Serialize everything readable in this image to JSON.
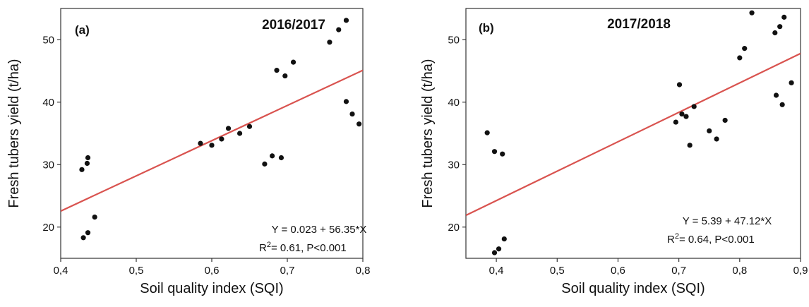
{
  "chart_data": [
    {
      "type": "scatter",
      "panel_label": "(a)",
      "title": "2016/2017",
      "xlabel": "Soil quality index (SQI)",
      "ylabel": "Fresh tubers yield (t/ha)",
      "xlim": [
        0.4,
        0.8
      ],
      "ylim": [
        15,
        55
      ],
      "xticks": [
        0.4,
        0.5,
        0.6,
        0.7,
        0.8
      ],
      "xtick_labels": [
        "0,4",
        "0,5",
        "0,6",
        "0,7",
        "0,8"
      ],
      "yticks": [
        20,
        30,
        40,
        50
      ],
      "ytick_labels": [
        "20",
        "30",
        "40",
        "50"
      ],
      "points": [
        [
          0.428,
          29.2
        ],
        [
          0.435,
          30.2
        ],
        [
          0.436,
          31.1
        ],
        [
          0.43,
          18.3
        ],
        [
          0.436,
          19.1
        ],
        [
          0.445,
          21.6
        ],
        [
          0.585,
          33.4
        ],
        [
          0.6,
          33.1
        ],
        [
          0.613,
          34.1
        ],
        [
          0.622,
          35.8
        ],
        [
          0.637,
          35.0
        ],
        [
          0.65,
          36.1
        ],
        [
          0.67,
          30.1
        ],
        [
          0.68,
          31.4
        ],
        [
          0.692,
          31.1
        ],
        [
          0.686,
          45.1
        ],
        [
          0.697,
          44.2
        ],
        [
          0.708,
          46.4
        ],
        [
          0.756,
          49.6
        ],
        [
          0.768,
          51.6
        ],
        [
          0.778,
          53.1
        ],
        [
          0.778,
          40.1
        ],
        [
          0.786,
          38.1
        ],
        [
          0.795,
          36.5
        ]
      ],
      "fit_line": {
        "intercept": 0.023,
        "slope": 56.35,
        "color": "#d9534f"
      },
      "point_color": "#111111",
      "grid": false,
      "equation": "Y = 0.023 + 56.35*X",
      "stats": {
        "r_prefix": "R",
        "r_sup": "2",
        "r_rest": "= 0.61, P<0.001"
      }
    },
    {
      "type": "scatter",
      "panel_label": "(b)",
      "title": "2017/2018",
      "xlabel": "Soil quality index (SQI)",
      "ylabel": "Fresh tubers yield (t/ha)",
      "xlim": [
        0.35,
        0.9
      ],
      "ylim": [
        15,
        55
      ],
      "xticks": [
        0.4,
        0.5,
        0.6,
        0.7,
        0.8,
        0.9
      ],
      "xtick_labels": [
        "0,4",
        "0,5",
        "0,6",
        "0,7",
        "0,8",
        "0,9"
      ],
      "yticks": [
        20,
        30,
        40,
        50
      ],
      "ytick_labels": [
        "20",
        "30",
        "40",
        "50"
      ],
      "points": [
        [
          0.385,
          35.1
        ],
        [
          0.397,
          32.1
        ],
        [
          0.41,
          31.7
        ],
        [
          0.397,
          15.9
        ],
        [
          0.404,
          16.5
        ],
        [
          0.413,
          18.1
        ],
        [
          0.695,
          36.8
        ],
        [
          0.701,
          42.8
        ],
        [
          0.705,
          38.1
        ],
        [
          0.712,
          37.7
        ],
        [
          0.718,
          33.1
        ],
        [
          0.725,
          39.3
        ],
        [
          0.75,
          35.4
        ],
        [
          0.762,
          34.1
        ],
        [
          0.776,
          37.1
        ],
        [
          0.8,
          47.1
        ],
        [
          0.808,
          48.6
        ],
        [
          0.82,
          54.3
        ],
        [
          0.858,
          51.1
        ],
        [
          0.866,
          52.1
        ],
        [
          0.873,
          53.6
        ],
        [
          0.86,
          41.1
        ],
        [
          0.87,
          39.6
        ],
        [
          0.885,
          43.1
        ]
      ],
      "fit_line": {
        "intercept": 5.39,
        "slope": 47.12,
        "color": "#d9534f"
      },
      "point_color": "#111111",
      "grid": false,
      "equation": "Y = 5.39 + 47.12*X",
      "stats": {
        "r_prefix": "R",
        "r_sup": "2",
        "r_rest": "= 0.64, P<0.001"
      }
    }
  ]
}
